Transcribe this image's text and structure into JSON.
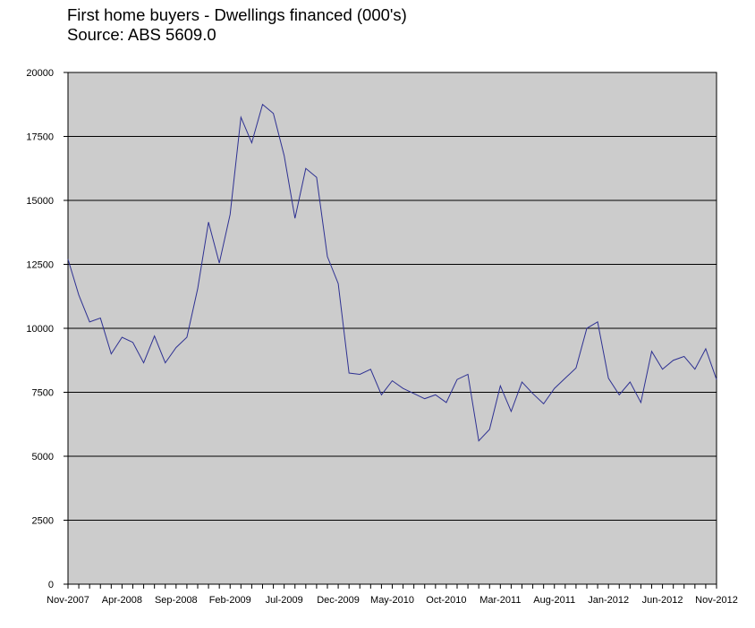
{
  "title_lines": [
    "First home buyers - Dwellings financed (000's)",
    "Source: ABS 5609.0"
  ],
  "chart_data": {
    "type": "line",
    "title": "First home buyers - Dwellings financed (000's)",
    "subtitle": "Source: ABS 5609.0",
    "xlabel": "",
    "ylabel": "",
    "ylim": [
      0,
      20000
    ],
    "yticks": [
      0,
      2500,
      5000,
      7500,
      10000,
      12500,
      15000,
      17500,
      20000
    ],
    "x_tick_labels": [
      "Nov-2007",
      "Apr-2008",
      "Sep-2008",
      "Feb-2009",
      "Jul-2009",
      "Dec-2009",
      "May-2010",
      "Oct-2010",
      "Mar-2011",
      "Aug-2011",
      "Jan-2012",
      "Jun-2012",
      "Nov-2012"
    ],
    "grid": true,
    "legend": "none",
    "colors": {
      "plot_background": "#cccccc",
      "line": "#2e3192",
      "grid": "#000000"
    },
    "series": [
      {
        "x": [
          "Nov-2007",
          "Dec-2007",
          "Jan-2008",
          "Feb-2008",
          "Mar-2008",
          "Apr-2008",
          "May-2008",
          "Jun-2008",
          "Jul-2008",
          "Aug-2008",
          "Sep-2008",
          "Oct-2008",
          "Nov-2008",
          "Dec-2008",
          "Jan-2009",
          "Feb-2009",
          "Mar-2009",
          "Apr-2009",
          "May-2009",
          "Jun-2009",
          "Jul-2009",
          "Aug-2009",
          "Sep-2009",
          "Oct-2009",
          "Nov-2009",
          "Dec-2009",
          "Jan-2010",
          "Feb-2010",
          "Mar-2010",
          "Apr-2010",
          "May-2010",
          "Jun-2010",
          "Jul-2010",
          "Aug-2010",
          "Sep-2010",
          "Oct-2010",
          "Nov-2010",
          "Dec-2010",
          "Jan-2011",
          "Feb-2011",
          "Mar-2011",
          "Apr-2011",
          "May-2011",
          "Jun-2011",
          "Jul-2011",
          "Aug-2011",
          "Sep-2011",
          "Oct-2011",
          "Nov-2011",
          "Dec-2011",
          "Jan-2012",
          "Feb-2012",
          "Mar-2012",
          "Apr-2012",
          "May-2012",
          "Jun-2012",
          "Jul-2012",
          "Aug-2012",
          "Sep-2012",
          "Oct-2012",
          "Nov-2012"
        ],
        "values": [
          12700,
          11300,
          10250,
          10400,
          9000,
          9650,
          9450,
          8650,
          9700,
          8650,
          9250,
          9650,
          11550,
          14150,
          12550,
          14450,
          18250,
          17250,
          18750,
          18400,
          16750,
          14300,
          16250,
          15900,
          12800,
          11750,
          8250,
          8200,
          8400,
          7400,
          7950,
          7650,
          7450,
          7250,
          7400,
          7100,
          8000,
          8200,
          5600,
          6050,
          7750,
          6750,
          7900,
          7450,
          7050,
          7650,
          8050,
          8450,
          10000,
          10250,
          8050,
          7400,
          7900,
          7100,
          9100,
          8400,
          8750,
          8900,
          8400,
          9200,
          8000
        ]
      }
    ]
  }
}
